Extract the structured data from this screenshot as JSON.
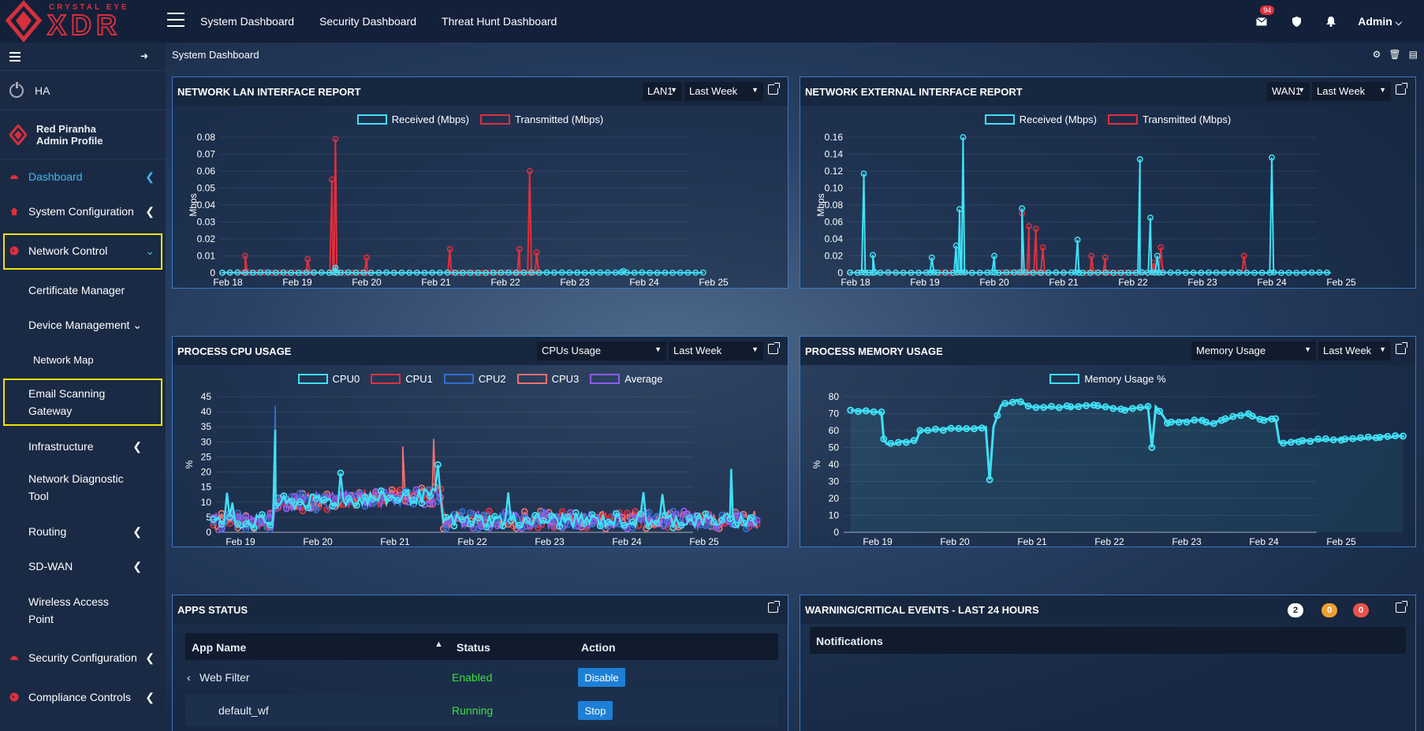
{
  "brand": {
    "tagline": "CRYSTAL EYE",
    "name": "XDR"
  },
  "topnav": [
    "System Dashboard",
    "Security Dashboard",
    "Threat Hunt Dashboard"
  ],
  "topbar": {
    "mail_count": "94",
    "user": "Admin"
  },
  "sidebar": {
    "ha": "HA",
    "profile": {
      "name": "Red Piranha",
      "role": "Admin Profile"
    },
    "items": [
      {
        "label": "Dashboard"
      },
      {
        "label": "System Configuration"
      },
      {
        "label": "Network Control"
      },
      {
        "label": "Certificate Manager"
      },
      {
        "label": "Device Management"
      },
      {
        "label": "Network Map"
      },
      {
        "label": "Email Scanning",
        "label2": "Gateway"
      },
      {
        "label": "Infrastructure"
      },
      {
        "label": "Network Diagnostic",
        "label2": "Tool"
      },
      {
        "label": "Routing"
      },
      {
        "label": "SD-WAN"
      },
      {
        "label": "Wireless Access",
        "label2": "Point"
      },
      {
        "label": "Security Configuration"
      },
      {
        "label": "Compliance Controls"
      }
    ]
  },
  "breadcrumb": "System Dashboard",
  "colors": {
    "cyan": "#3fe0f5",
    "red": "#e0303c",
    "blue": "#2f6fd0",
    "pink": "#f07070",
    "purple": "#8a5cf0",
    "accent": "#1e7fd6",
    "highlight": "#f1e20a"
  },
  "panels": {
    "lan": {
      "title": "NETWORK LAN INTERFACE REPORT",
      "iface": "LAN1",
      "range": "Last Week"
    },
    "wan": {
      "title": "NETWORK EXTERNAL INTERFACE REPORT",
      "iface": "WAN1",
      "range": "Last Week"
    },
    "cpu": {
      "title": "PROCESS CPU USAGE",
      "metric": "CPUs Usage",
      "range": "Last Week"
    },
    "mem": {
      "title": "PROCESS MEMORY USAGE",
      "metric": "Memory Usage",
      "range": "Last Week"
    },
    "apps": {
      "title": "APPS STATUS",
      "columns": [
        "App Name",
        "Status",
        "Action"
      ],
      "rows": [
        {
          "name": "Web Filter",
          "status": "Enabled",
          "action": "Disable"
        },
        {
          "name": "default_wf",
          "status": "Running",
          "action": "Stop"
        }
      ]
    },
    "events": {
      "title": "WARNING/CRITICAL EVENTS - LAST 24 HOURS",
      "counts": [
        "2",
        "0",
        "0"
      ],
      "section": "Notifications"
    }
  },
  "chart_data": [
    {
      "type": "line",
      "id": "lan",
      "x": [
        "Feb 18",
        "Feb 19",
        "Feb 20",
        "Feb 21",
        "Feb 22",
        "Feb 23",
        "Feb 24",
        "Feb 25"
      ],
      "ylabel": "Mbps",
      "ylim": [
        0,
        0.08
      ],
      "yticks": [
        "0",
        "0.01",
        "0.02",
        "0.03",
        "0.04",
        "0.05",
        "0.06",
        "0.07",
        "0.08"
      ],
      "series": [
        {
          "name": "Received (Mbps)",
          "peaks": [
            [
              1.55,
              0.003
            ],
            [
              5.7,
              0.001
            ]
          ]
        },
        {
          "name": "Transmitted (Mbps)",
          "peaks": [
            [
              0.25,
              0.01
            ],
            [
              1.5,
              0.055
            ],
            [
              1.55,
              0.079
            ],
            [
              2.0,
              0.009
            ],
            [
              3.2,
              0.014
            ],
            [
              4.35,
              0.06
            ],
            [
              4.2,
              0.014
            ],
            [
              4.45,
              0.012
            ],
            [
              1.15,
              0.008
            ]
          ]
        }
      ]
    },
    {
      "type": "line",
      "id": "wan",
      "x": [
        "Feb 18",
        "Feb 19",
        "Feb 20",
        "Feb 21",
        "Feb 22",
        "Feb 23",
        "Feb 24",
        "Feb 25"
      ],
      "ylabel": "Mbps",
      "ylim": [
        0,
        0.16
      ],
      "yticks": [
        "0",
        "0.02",
        "0.04",
        "0.06",
        "0.08",
        "0.10",
        "0.12",
        "0.14",
        "0.16"
      ],
      "series": [
        {
          "name": "Received (Mbps)",
          "peaks": [
            [
              0.12,
              0.117
            ],
            [
              0.25,
              0.021
            ],
            [
              1.5,
              0.075
            ],
            [
              1.55,
              0.16
            ],
            [
              1.45,
              0.032
            ],
            [
              2.4,
              0.076
            ],
            [
              3.2,
              0.039
            ],
            [
              4.1,
              0.134
            ],
            [
              4.25,
              0.065
            ],
            [
              4.35,
              0.02
            ],
            [
              6.0,
              0.136
            ],
            [
              2.0,
              0.02
            ],
            [
              1.1,
              0.018
            ]
          ]
        },
        {
          "name": "Transmitted (Mbps)",
          "peaks": [
            [
              2.4,
              0.07
            ],
            [
              2.5,
              0.055
            ],
            [
              2.6,
              0.052
            ],
            [
              2.7,
              0.03
            ],
            [
              3.4,
              0.02
            ],
            [
              3.6,
              0.018
            ],
            [
              4.4,
              0.03
            ],
            [
              5.6,
              0.02
            ],
            [
              4.3,
              0.012
            ]
          ]
        }
      ]
    },
    {
      "type": "line",
      "id": "cpu",
      "x": [
        "Feb 19",
        "Feb 20",
        "Feb 21",
        "Feb 22",
        "Feb 23",
        "Feb 24",
        "Feb 25"
      ],
      "ylabel": "%",
      "ylim": [
        0,
        45
      ],
      "yticks": [
        "0",
        "5",
        "10",
        "15",
        "20",
        "25",
        "30",
        "35",
        "40",
        "45"
      ],
      "series": [
        {
          "name": "CPU0"
        },
        {
          "name": "CPU1"
        },
        {
          "name": "CPU2"
        },
        {
          "name": "CPU3"
        },
        {
          "name": "Average"
        }
      ]
    },
    {
      "type": "area",
      "id": "mem",
      "x": [
        "Feb 19",
        "Feb 20",
        "Feb 21",
        "Feb 22",
        "Feb 23",
        "Feb 24",
        "Feb 25"
      ],
      "ylabel": "%",
      "ylim": [
        0,
        80
      ],
      "yticks": [
        "0",
        "10",
        "20",
        "30",
        "40",
        "50",
        "60",
        "70",
        "80"
      ],
      "series": [
        {
          "name": "Memory Usage %",
          "points": [
            [
              -0.35,
              72
            ],
            [
              0.05,
              71
            ],
            [
              0.08,
              55
            ],
            [
              0.12,
              52
            ],
            [
              0.5,
              54
            ],
            [
              0.55,
              60
            ],
            [
              1.0,
              61
            ],
            [
              1.4,
              62
            ],
            [
              1.45,
              31
            ],
            [
              1.5,
              62
            ],
            [
              1.6,
              75
            ],
            [
              1.8,
              78
            ],
            [
              2.0,
              74
            ],
            [
              2.5,
              74
            ],
            [
              2.8,
              75
            ],
            [
              3.2,
              72
            ],
            [
              3.5,
              74
            ],
            [
              3.55,
              50
            ],
            [
              3.6,
              74
            ],
            [
              3.75,
              65
            ],
            [
              4.2,
              66
            ],
            [
              4.3,
              64
            ],
            [
              4.5,
              67
            ],
            [
              4.8,
              70
            ],
            [
              5.0,
              66
            ],
            [
              5.15,
              67
            ],
            [
              5.2,
              53
            ],
            [
              5.5,
              54
            ],
            [
              6.0,
              55
            ],
            [
              6.5,
              56
            ],
            [
              6.8,
              57
            ]
          ]
        }
      ]
    }
  ]
}
